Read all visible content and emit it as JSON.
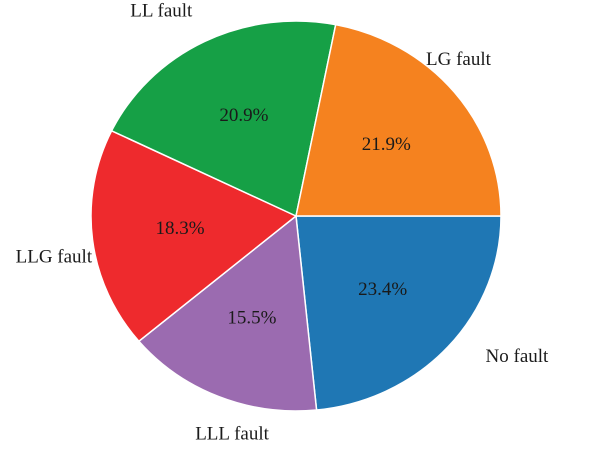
{
  "chart_data": {
    "type": "pie",
    "title": "",
    "slices": [
      {
        "label": "No fault",
        "value": 23.4,
        "value_label": "23.4%",
        "color": "#1f77b4"
      },
      {
        "label": "LLL fault",
        "value": 15.5,
        "value_label": "15.5%",
        "color": "#9b6bb0"
      },
      {
        "label": "LLG fault",
        "value": 18.3,
        "value_label": "18.3%",
        "color": "#ee2a2d"
      },
      {
        "label": "LL fault",
        "value": 20.9,
        "value_label": "20.9%",
        "color": "#16a046"
      },
      {
        "label": "LG fault",
        "value": 21.9,
        "value_label": "21.9%",
        "color": "#f5821f"
      }
    ],
    "start_angle_deg": 0,
    "direction": "clockwise",
    "legend": "none",
    "labels": "outside",
    "value_labels": "inside"
  }
}
